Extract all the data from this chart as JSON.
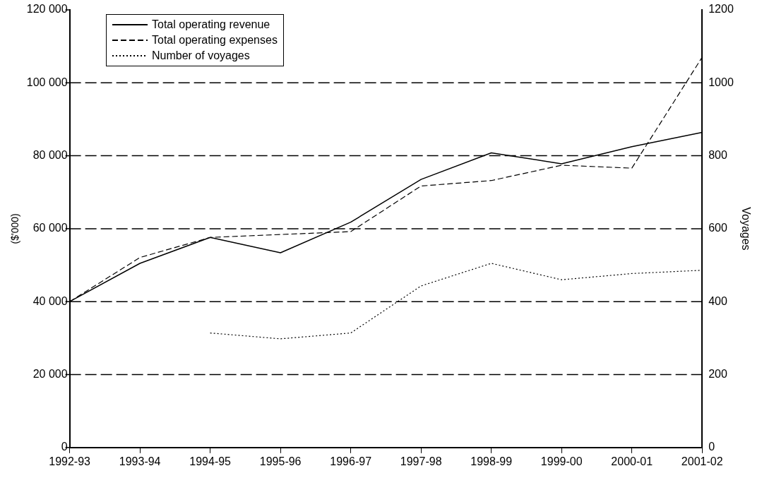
{
  "chart_data": {
    "type": "line",
    "ylabel": "($'000)",
    "y2label": "Voyages",
    "categories": [
      "1992-93",
      "1993-94",
      "1994-95",
      "1995-96",
      "1996-97",
      "1997-98",
      "1998-99",
      "1999-00",
      "2000-01",
      "2001-02"
    ],
    "series": [
      {
        "name": "Total operating revenue",
        "color": "#000000",
        "line_style": "solid",
        "values": [
          40000,
          50500,
          57600,
          53400,
          61800,
          73500,
          80800,
          77800,
          82500,
          86400
        ]
      },
      {
        "name": "Total operating expenses",
        "color": "#000000",
        "line_style": "dashed",
        "values": [
          40000,
          52100,
          57600,
          58400,
          59200,
          71700,
          73200,
          77400,
          76600,
          107000
        ]
      },
      {
        "name": "Number of voyages",
        "color": "#000000",
        "line_style": "dotted",
        "axis": "y2",
        "values": [
          null,
          null,
          314,
          298,
          314,
          443,
          505,
          460,
          477,
          486
        ]
      }
    ],
    "ylim": [
      0,
      120000
    ],
    "yticks": [
      {
        "value": 0,
        "label": "0"
      },
      {
        "value": 20000,
        "label": "20 000"
      },
      {
        "value": 40000,
        "label": "40 000"
      },
      {
        "value": 60000,
        "label": "60 000"
      },
      {
        "value": 80000,
        "label": "80 000"
      },
      {
        "value": 100000,
        "label": "100 000"
      },
      {
        "value": 120000,
        "label": "120 000"
      }
    ],
    "y2lim": [
      0,
      1200
    ],
    "y2ticks": [
      0,
      200,
      400,
      600,
      800,
      1000,
      1200
    ],
    "grid": "y",
    "legend": "top left",
    "marker": "none"
  }
}
